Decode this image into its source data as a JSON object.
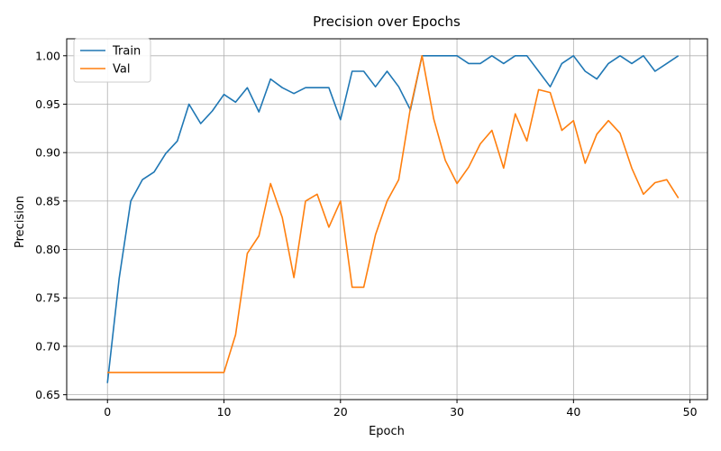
{
  "chart_data": {
    "type": "line",
    "title": "Precision over Epochs",
    "xlabel": "Epoch",
    "ylabel": "Precision",
    "xlim": [
      -3.5,
      51.5
    ],
    "ylim": [
      0.645,
      1.0175
    ],
    "xticks": [
      0,
      10,
      20,
      30,
      40,
      50
    ],
    "yticks": [
      0.65,
      0.7,
      0.75,
      0.8,
      0.85,
      0.9,
      0.95,
      1.0
    ],
    "ytick_labels": [
      "0.65",
      "0.70",
      "0.75",
      "0.80",
      "0.85",
      "0.90",
      "0.95",
      "1.00"
    ],
    "grid": true,
    "legend_position": "top-left",
    "x": [
      0,
      1,
      2,
      3,
      4,
      5,
      6,
      7,
      8,
      9,
      10,
      11,
      12,
      13,
      14,
      15,
      16,
      17,
      18,
      19,
      20,
      21,
      22,
      23,
      24,
      25,
      26,
      27,
      28,
      29,
      30,
      31,
      32,
      33,
      34,
      35,
      36,
      37,
      38,
      39,
      40,
      41,
      42,
      43,
      44,
      45,
      46,
      47,
      48,
      49
    ],
    "series": [
      {
        "name": "Train",
        "color": "#1f77b4",
        "values": [
          0.662,
          0.77,
          0.85,
          0.872,
          0.88,
          0.899,
          0.912,
          0.95,
          0.93,
          0.943,
          0.96,
          0.952,
          0.967,
          0.942,
          0.976,
          0.967,
          0.961,
          0.967,
          0.967,
          0.967,
          0.934,
          0.984,
          0.984,
          0.968,
          0.984,
          0.968,
          0.944,
          1.0,
          1.0,
          1.0,
          1.0,
          0.992,
          0.992,
          1.0,
          0.992,
          1.0,
          1.0,
          0.984,
          0.968,
          0.992,
          1.0,
          0.984,
          0.976,
          0.992,
          1.0,
          0.992,
          1.0,
          0.984,
          0.992,
          1.0
        ]
      },
      {
        "name": "Val",
        "color": "#ff7f0e",
        "values": [
          0.673,
          0.673,
          0.673,
          0.673,
          0.673,
          0.673,
          0.673,
          0.673,
          0.673,
          0.673,
          0.673,
          0.712,
          0.796,
          0.814,
          0.868,
          0.833,
          0.771,
          0.85,
          0.857,
          0.823,
          0.85,
          0.761,
          0.761,
          0.815,
          0.85,
          0.872,
          0.946,
          1.0,
          0.935,
          0.892,
          0.868,
          0.885,
          0.909,
          0.923,
          0.884,
          0.94,
          0.912,
          0.965,
          0.962,
          0.923,
          0.933,
          0.889,
          0.919,
          0.933,
          0.92,
          0.884,
          0.857,
          0.869,
          0.872,
          0.853
        ]
      }
    ]
  }
}
